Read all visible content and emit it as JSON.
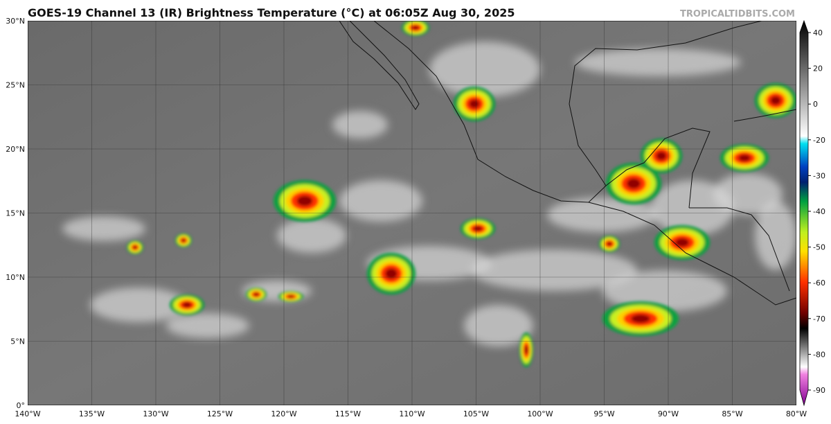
{
  "header": {
    "title": "GOES-19 Channel 13 (IR) Brightness Temperature (°C) at 06:05Z Aug 30, 2025",
    "source": "TROPICALTIDBITS.COM"
  },
  "map": {
    "lat_labels": [
      "30°N",
      "25°N",
      "20°N",
      "15°N",
      "10°N",
      "5°N",
      "0°"
    ],
    "lon_labels": [
      "140°W",
      "135°W",
      "130°W",
      "125°W",
      "120°W",
      "115°W",
      "110°W",
      "105°W",
      "100°W",
      "95°W",
      "90°W",
      "85°W",
      "80°W"
    ]
  },
  "colorbar": {
    "ticks": [
      40,
      20,
      0,
      -20,
      -30,
      -40,
      -50,
      -60,
      -70,
      -80,
      -90
    ]
  }
}
